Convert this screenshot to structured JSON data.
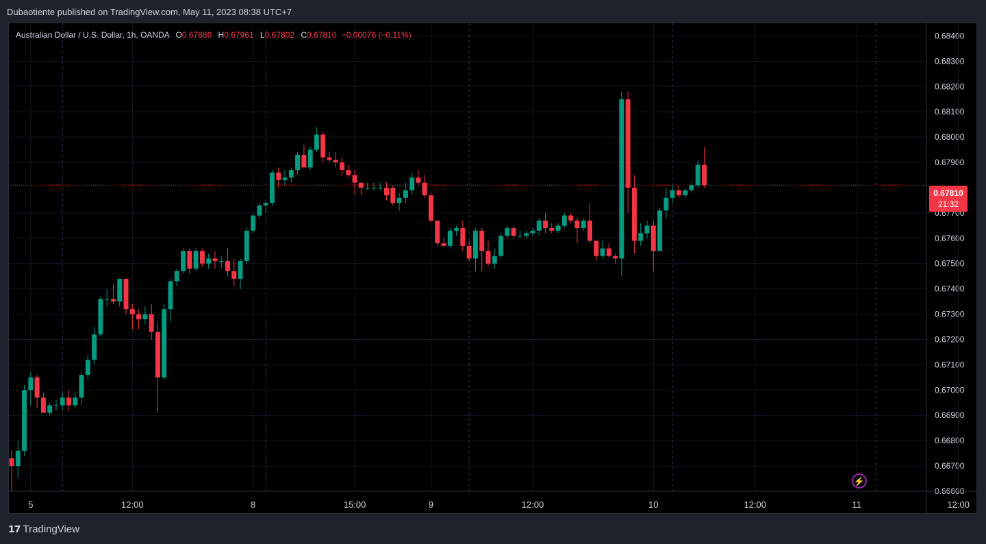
{
  "header": {
    "publish_text": "Dubaotiente published on TradingView.com, May 11, 2023 08:38 UTC+7"
  },
  "legend": {
    "symbol": "Australian Dollar / U.S. Dollar, 1h, OANDA",
    "open_label": "O",
    "open": "0.67886",
    "high_label": "H",
    "high": "0.67961",
    "low_label": "L",
    "low": "0.67802",
    "close_label": "C",
    "close": "0.67810",
    "change": "−0.00076 (−0.11%)"
  },
  "price_tag": {
    "price": "0.67810",
    "countdown": "21:32"
  },
  "footer": {
    "logo_icon": "tradingview-logo-icon",
    "brand": "TradingView"
  },
  "colors": {
    "up": "#089981",
    "down": "#f23645",
    "background": "#000000",
    "text": "#d1d4dc"
  },
  "chart_data": {
    "type": "candlestick",
    "ylim": [
      0.666,
      0.6845
    ],
    "y_ticks": [
      "0.68400",
      "0.68300",
      "0.68200",
      "0.68100",
      "0.68000",
      "0.67900",
      "0.67700",
      "0.67600",
      "0.67500",
      "0.67400",
      "0.67300",
      "0.67200",
      "0.67100",
      "0.67000",
      "0.66900",
      "0.66800",
      "0.66700",
      "0.66600"
    ],
    "x_labels": [
      {
        "index": 3,
        "label": "5"
      },
      {
        "index": 19,
        "label": "12:00"
      },
      {
        "index": 38,
        "label": "8"
      },
      {
        "index": 54,
        "label": "15:00"
      },
      {
        "index": 66,
        "label": "9"
      },
      {
        "index": 82,
        "label": "12:00"
      },
      {
        "index": 101,
        "label": "10"
      },
      {
        "index": 117,
        "label": "12:00"
      },
      {
        "index": 133,
        "label": "11"
      },
      {
        "index": 149,
        "label": "12:00"
      }
    ],
    "day_separators": [
      8,
      40,
      72,
      104,
      136
    ],
    "last_price": 0.6781,
    "candles": [
      [
        0.6673,
        0.6676,
        0.666,
        0.667
      ],
      [
        0.667,
        0.668,
        0.6665,
        0.6676
      ],
      [
        0.6676,
        0.6702,
        0.6674,
        0.67
      ],
      [
        0.67,
        0.6707,
        0.6694,
        0.6705
      ],
      [
        0.6705,
        0.6706,
        0.6693,
        0.6697
      ],
      [
        0.6697,
        0.6699,
        0.6691,
        0.6691
      ],
      [
        0.6691,
        0.6695,
        0.669,
        0.6694
      ],
      [
        0.6694,
        0.6696,
        0.6692,
        0.6694
      ],
      [
        0.6694,
        0.6699,
        0.6692,
        0.6697
      ],
      [
        0.6697,
        0.67,
        0.6692,
        0.6694
      ],
      [
        0.6694,
        0.6699,
        0.6693,
        0.6697
      ],
      [
        0.6697,
        0.6707,
        0.6694,
        0.6706
      ],
      [
        0.6706,
        0.6714,
        0.6704,
        0.6712
      ],
      [
        0.6712,
        0.6725,
        0.671,
        0.6722
      ],
      [
        0.6722,
        0.6737,
        0.6721,
        0.6736
      ],
      [
        0.6736,
        0.674,
        0.6733,
        0.6736
      ],
      [
        0.6736,
        0.6742,
        0.6734,
        0.6735
      ],
      [
        0.6735,
        0.6744,
        0.6733,
        0.6744
      ],
      [
        0.6744,
        0.6744,
        0.673,
        0.6732
      ],
      [
        0.6732,
        0.6734,
        0.6724,
        0.673
      ],
      [
        0.673,
        0.6732,
        0.6724,
        0.6728
      ],
      [
        0.6728,
        0.6733,
        0.6726,
        0.673
      ],
      [
        0.673,
        0.6734,
        0.672,
        0.6723
      ],
      [
        0.6723,
        0.6727,
        0.6691,
        0.6705
      ],
      [
        0.6705,
        0.6734,
        0.6704,
        0.6732
      ],
      [
        0.6732,
        0.6744,
        0.6727,
        0.6743
      ],
      [
        0.6743,
        0.6748,
        0.6741,
        0.6747
      ],
      [
        0.6747,
        0.6756,
        0.6746,
        0.6755
      ],
      [
        0.6755,
        0.6756,
        0.6746,
        0.6748
      ],
      [
        0.6748,
        0.6756,
        0.6747,
        0.6755
      ],
      [
        0.6755,
        0.6756,
        0.6749,
        0.675
      ],
      [
        0.675,
        0.6754,
        0.6748,
        0.6752
      ],
      [
        0.6752,
        0.6755,
        0.6748,
        0.6751
      ],
      [
        0.6751,
        0.6753,
        0.6748,
        0.6751
      ],
      [
        0.6751,
        0.6756,
        0.6745,
        0.6747
      ],
      [
        0.6747,
        0.6752,
        0.6741,
        0.6744
      ],
      [
        0.6744,
        0.6752,
        0.674,
        0.6751
      ],
      [
        0.6751,
        0.6764,
        0.675,
        0.6763
      ],
      [
        0.6763,
        0.677,
        0.6762,
        0.6769
      ],
      [
        0.6769,
        0.6774,
        0.6768,
        0.6773
      ],
      [
        0.6773,
        0.6775,
        0.677,
        0.6774
      ],
      [
        0.6774,
        0.6787,
        0.6773,
        0.6786
      ],
      [
        0.6786,
        0.6788,
        0.678,
        0.6783
      ],
      [
        0.6783,
        0.6787,
        0.6781,
        0.6784
      ],
      [
        0.6784,
        0.6788,
        0.6782,
        0.6787
      ],
      [
        0.6787,
        0.6794,
        0.6785,
        0.6793
      ],
      [
        0.6793,
        0.6797,
        0.6788,
        0.6788
      ],
      [
        0.6788,
        0.6796,
        0.6787,
        0.6795
      ],
      [
        0.6795,
        0.6804,
        0.6794,
        0.6801
      ],
      [
        0.6801,
        0.6802,
        0.679,
        0.6792
      ],
      [
        0.6792,
        0.6794,
        0.679,
        0.6791
      ],
      [
        0.6791,
        0.6794,
        0.6788,
        0.679
      ],
      [
        0.679,
        0.6792,
        0.6785,
        0.6787
      ],
      [
        0.6787,
        0.6789,
        0.6784,
        0.6785
      ],
      [
        0.6785,
        0.6787,
        0.6777,
        0.6782
      ],
      [
        0.6782,
        0.6782,
        0.6777,
        0.678
      ],
      [
        0.678,
        0.6782,
        0.6779,
        0.678
      ],
      [
        0.678,
        0.6782,
        0.6779,
        0.678
      ],
      [
        0.678,
        0.6782,
        0.6779,
        0.678
      ],
      [
        0.678,
        0.6782,
        0.6775,
        0.6777
      ],
      [
        0.678,
        0.6781,
        0.6773,
        0.6774
      ],
      [
        0.6774,
        0.6778,
        0.6771,
        0.6776
      ],
      [
        0.6776,
        0.6782,
        0.6774,
        0.6779
      ],
      [
        0.6779,
        0.6786,
        0.6777,
        0.6784
      ],
      [
        0.6784,
        0.6787,
        0.6781,
        0.6782
      ],
      [
        0.6782,
        0.6785,
        0.6776,
        0.6777
      ],
      [
        0.6777,
        0.6778,
        0.6766,
        0.6767
      ],
      [
        0.6767,
        0.6767,
        0.6757,
        0.6758
      ],
      [
        0.6758,
        0.676,
        0.6757,
        0.6757
      ],
      [
        0.6757,
        0.6764,
        0.6756,
        0.6763
      ],
      [
        0.6763,
        0.6765,
        0.6761,
        0.6764
      ],
      [
        0.6764,
        0.6767,
        0.6755,
        0.6757
      ],
      [
        0.6757,
        0.6759,
        0.6751,
        0.6752
      ],
      [
        0.6752,
        0.6764,
        0.6747,
        0.6763
      ],
      [
        0.6763,
        0.6764,
        0.6747,
        0.6755
      ],
      [
        0.6755,
        0.6759,
        0.6749,
        0.675
      ],
      [
        0.675,
        0.6756,
        0.6748,
        0.6753
      ],
      [
        0.6753,
        0.6762,
        0.6752,
        0.6761
      ],
      [
        0.6761,
        0.6765,
        0.676,
        0.6764
      ],
      [
        0.6764,
        0.6765,
        0.676,
        0.6761
      ],
      [
        0.6761,
        0.6763,
        0.676,
        0.6761
      ],
      [
        0.6761,
        0.6763,
        0.676,
        0.6762
      ],
      [
        0.6762,
        0.6764,
        0.6761,
        0.6763
      ],
      [
        0.6763,
        0.6768,
        0.6761,
        0.6767
      ],
      [
        0.6767,
        0.677,
        0.6762,
        0.6764
      ],
      [
        0.6764,
        0.6766,
        0.6762,
        0.6763
      ],
      [
        0.6763,
        0.6766,
        0.6762,
        0.6765
      ],
      [
        0.6765,
        0.677,
        0.6764,
        0.6769
      ],
      [
        0.6769,
        0.677,
        0.6766,
        0.6767
      ],
      [
        0.6767,
        0.6768,
        0.6758,
        0.6764
      ],
      [
        0.6764,
        0.6768,
        0.6763,
        0.6767
      ],
      [
        0.6767,
        0.6774,
        0.6758,
        0.6759
      ],
      [
        0.6759,
        0.6759,
        0.6751,
        0.6753
      ],
      [
        0.6753,
        0.6759,
        0.6752,
        0.6756
      ],
      [
        0.6756,
        0.6758,
        0.6752,
        0.6753
      ],
      [
        0.6753,
        0.6754,
        0.675,
        0.6752
      ],
      [
        0.6752,
        0.6818,
        0.6745,
        0.6815
      ],
      [
        0.6815,
        0.6818,
        0.677,
        0.678
      ],
      [
        0.678,
        0.6785,
        0.6754,
        0.6759
      ],
      [
        0.6759,
        0.6766,
        0.6757,
        0.6762
      ],
      [
        0.6762,
        0.6767,
        0.676,
        0.6765
      ],
      [
        0.6765,
        0.6767,
        0.6747,
        0.6755
      ],
      [
        0.6755,
        0.6772,
        0.6755,
        0.6771
      ],
      [
        0.6771,
        0.678,
        0.6768,
        0.6776
      ],
      [
        0.6776,
        0.6781,
        0.6774,
        0.6779
      ],
      [
        0.6779,
        0.6781,
        0.6776,
        0.6777
      ],
      [
        0.6777,
        0.678,
        0.6776,
        0.6779
      ],
      [
        0.6779,
        0.6782,
        0.6778,
        0.6781
      ],
      [
        0.6781,
        0.6791,
        0.678,
        0.6789
      ],
      [
        0.6789,
        0.6796,
        0.678,
        0.6781
      ]
    ]
  }
}
